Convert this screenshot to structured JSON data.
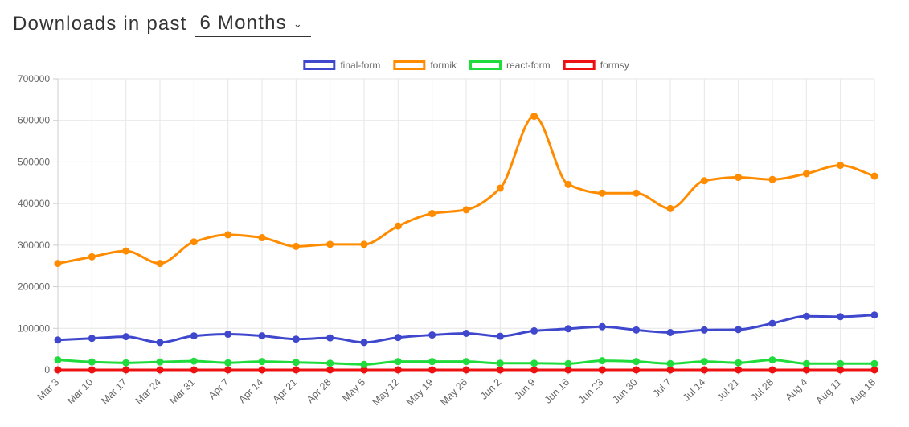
{
  "header": {
    "prefix": "Downloads in past",
    "period_selected": "6 Months"
  },
  "chart_data": {
    "type": "line",
    "title": "",
    "xlabel": "",
    "ylabel": "",
    "ylim": [
      0,
      700000
    ],
    "yticks": [
      0,
      100000,
      200000,
      300000,
      400000,
      500000,
      600000,
      700000
    ],
    "ytick_labels": [
      "0",
      "100000",
      "200000",
      "300000",
      "400000",
      "500000",
      "600000",
      "700000"
    ],
    "grid": true,
    "legend_position": "top-center",
    "categories": [
      "Mar 3",
      "Mar 10",
      "Mar 17",
      "Mar 24",
      "Mar 31",
      "Apr 7",
      "Apr 14",
      "Apr 21",
      "Apr 28",
      "May 5",
      "May 12",
      "May 19",
      "May 26",
      "Jun 2",
      "Jun 9",
      "Jun 16",
      "Jun 23",
      "Jun 30",
      "Jul 7",
      "Jul 14",
      "Jul 21",
      "Jul 28",
      "Aug 4",
      "Aug 11",
      "Aug 18"
    ],
    "series": [
      {
        "name": "final-form",
        "color": "#3f48cc",
        "values": [
          72000,
          76000,
          80000,
          66000,
          82000,
          86000,
          82000,
          74000,
          77000,
          66000,
          78000,
          84000,
          88000,
          81000,
          94000,
          99000,
          104000,
          96000,
          90000,
          96000,
          97000,
          112000,
          129000,
          128000,
          132000
        ]
      },
      {
        "name": "formik",
        "color": "#ff8c00",
        "values": [
          256000,
          272000,
          286000,
          256000,
          308000,
          325000,
          318000,
          297000,
          302000,
          302000,
          346000,
          376000,
          385000,
          437000,
          610000,
          446000,
          425000,
          425000,
          388000,
          455000,
          463000,
          458000,
          472000,
          492000,
          466000
        ]
      },
      {
        "name": "react-form",
        "color": "#1fdc3c",
        "values": [
          24000,
          19000,
          17000,
          19000,
          21000,
          17000,
          20000,
          18000,
          16000,
          13000,
          20000,
          20000,
          20000,
          16000,
          16000,
          15000,
          22000,
          20000,
          15000,
          20000,
          17000,
          24000,
          15000,
          15000,
          15000
        ]
      },
      {
        "name": "formsy",
        "color": "#ee1111",
        "values": [
          0,
          0,
          0,
          0,
          0,
          0,
          0,
          0,
          0,
          0,
          0,
          0,
          0,
          0,
          0,
          0,
          0,
          0,
          0,
          0,
          0,
          0,
          0,
          0,
          0
        ]
      }
    ]
  }
}
